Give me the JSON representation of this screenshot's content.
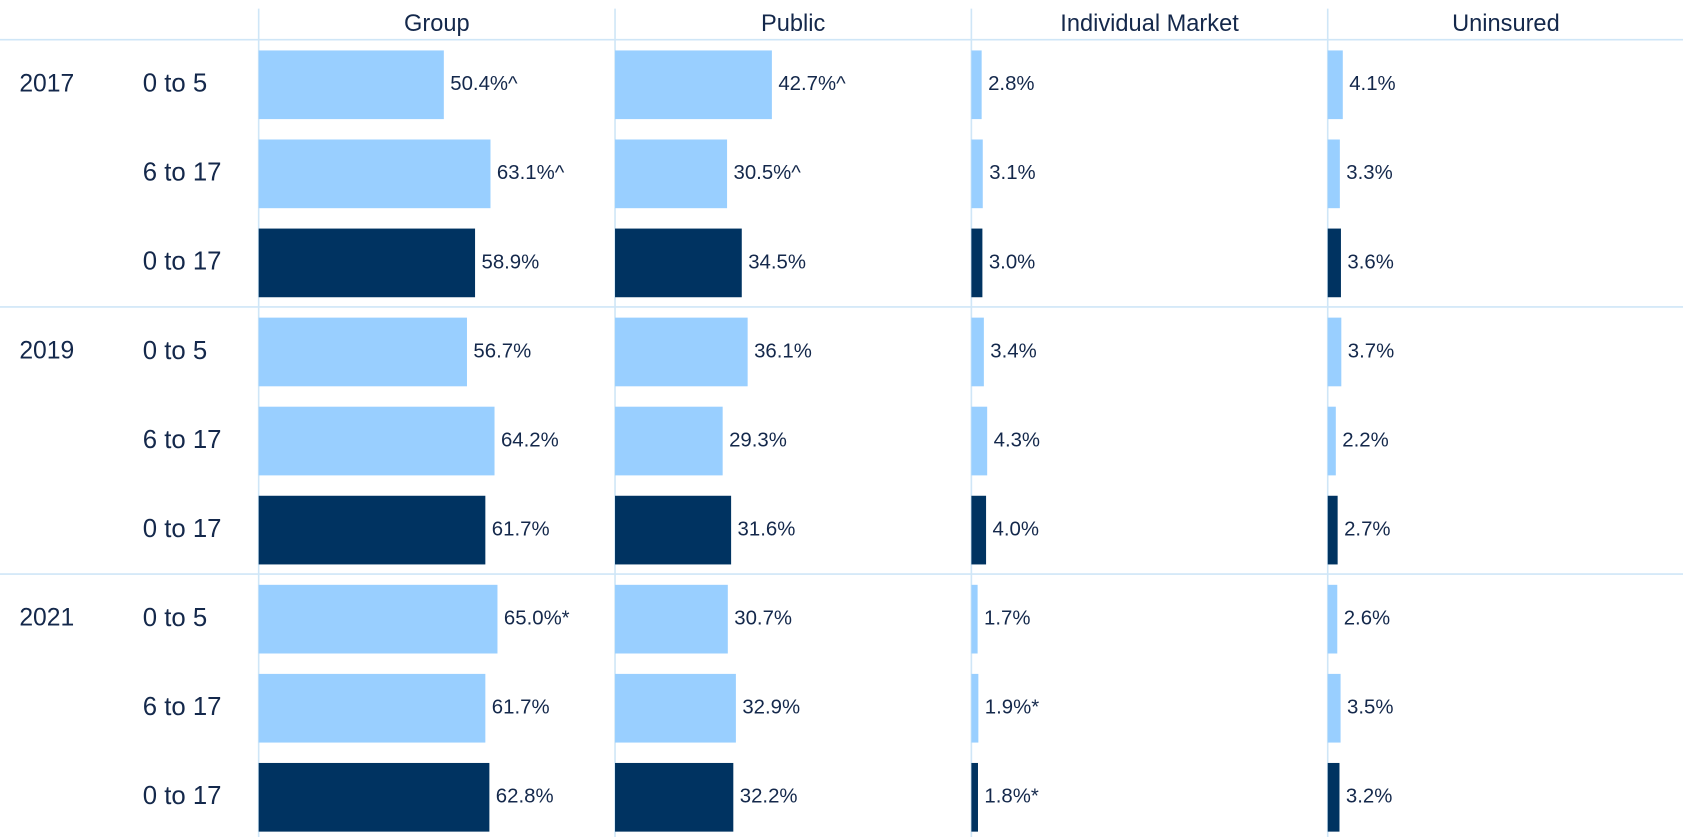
{
  "chart_data": {
    "type": "bar",
    "orientation": "horizontal",
    "groups": [
      "2017",
      "2019",
      "2021"
    ],
    "categories": [
      "0 to 5",
      "6 to 17",
      "0 to 17",
      "0 to 5",
      "6 to 17",
      "0 to 17",
      "0 to 5",
      "6 to 17",
      "0 to 17"
    ],
    "bar_colors": [
      "#99cfff",
      "#99cfff",
      "#003361",
      "#99cfff",
      "#99cfff",
      "#003361",
      "#99cfff",
      "#99cfff",
      "#003361"
    ],
    "xlim": [
      0,
      97
    ],
    "series": [
      {
        "name": "Group",
        "values": [
          50.4,
          63.1,
          58.9,
          56.7,
          64.2,
          61.7,
          65.0,
          61.7,
          62.8
        ],
        "value_labels": [
          "50.4%^",
          "63.1%^",
          "58.9%",
          "56.7%",
          "64.2%",
          "61.7%",
          "65.0%*",
          "61.7%",
          "62.8%"
        ]
      },
      {
        "name": "Public",
        "values": [
          42.7,
          30.5,
          34.5,
          36.1,
          29.3,
          31.6,
          30.7,
          32.9,
          32.2
        ],
        "value_labels": [
          "42.7%^",
          "30.5%^",
          "34.5%",
          "36.1%",
          "29.3%",
          "31.6%",
          "30.7%",
          "32.9%",
          "32.2%"
        ]
      },
      {
        "name": "Individual Market",
        "values": [
          2.8,
          3.1,
          3.0,
          3.4,
          4.3,
          4.0,
          1.7,
          1.9,
          1.8
        ],
        "value_labels": [
          "2.8%",
          "3.1%",
          "3.0%",
          "3.4%",
          "4.3%",
          "4.0%",
          "1.7%",
          "1.9%*",
          "1.8%*"
        ]
      },
      {
        "name": "Uninsured",
        "values": [
          4.1,
          3.3,
          3.6,
          3.7,
          2.2,
          2.7,
          2.6,
          3.5,
          3.2
        ],
        "value_labels": [
          "4.1%",
          "3.3%",
          "3.6%",
          "3.7%",
          "2.2%",
          "2.7%",
          "2.6%",
          "3.5%",
          "3.2%"
        ]
      }
    ]
  }
}
